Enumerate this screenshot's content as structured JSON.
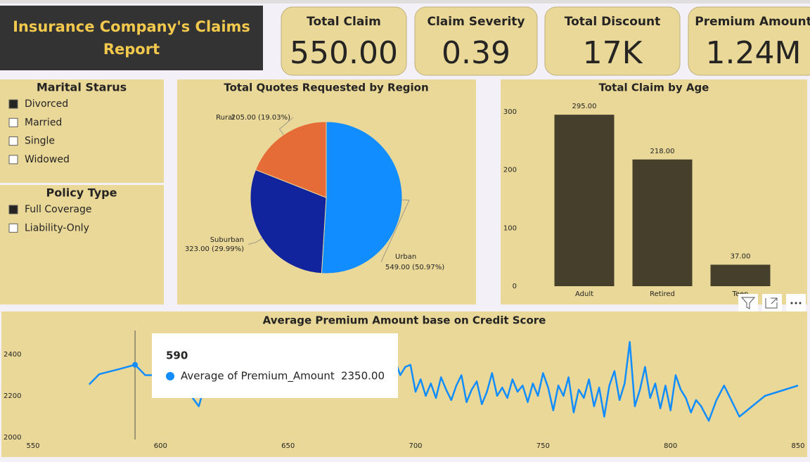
{
  "report_title": "Insurance Company's Claims Report",
  "cards": [
    {
      "label": "Total Claim",
      "value": "550.00"
    },
    {
      "label": "Claim Severity",
      "value": "0.39"
    },
    {
      "label": "Total Discount",
      "value": "17K"
    },
    {
      "label": "Premium Amount",
      "value": "1.24M"
    }
  ],
  "slicers": [
    {
      "title": "Marital Starus",
      "items": [
        {
          "label": "Divorced",
          "checked": true
        },
        {
          "label": "Married",
          "checked": false
        },
        {
          "label": "Single",
          "checked": false
        },
        {
          "label": "Widowed",
          "checked": false
        }
      ]
    },
    {
      "title": "Policy Type",
      "items": [
        {
          "label": "Full Coverage",
          "checked": true
        },
        {
          "label": "Liability-Only",
          "checked": false
        }
      ]
    }
  ],
  "chart_data": [
    {
      "type": "pie",
      "title": "Total Quotes Requested by Region",
      "categories": [
        "Urban",
        "Suburban",
        "Rural"
      ],
      "values": [
        549,
        323,
        205
      ],
      "value_labels": [
        "549.00 (50.97%)",
        "323.00 (29.99%)",
        "205.00 (19.03%)"
      ],
      "colors": [
        "#118dff",
        "#12239e",
        "#e66c37"
      ]
    },
    {
      "type": "bar",
      "title": "Total Claim by Age",
      "categories": [
        "Adult",
        "Retired",
        "Teen"
      ],
      "values": [
        295,
        218,
        37
      ],
      "value_labels": [
        "295.00",
        "218.00",
        "37.00"
      ],
      "color": "#463f2c",
      "ylim": [
        0,
        300
      ],
      "yticks": [
        0,
        100,
        200,
        300
      ]
    },
    {
      "type": "line",
      "title": "Average Premium Amount base on Credit Score",
      "x": [
        572,
        576,
        584,
        590,
        594,
        600,
        604,
        608,
        612,
        615,
        618,
        622,
        626,
        630,
        634,
        638,
        642,
        646,
        650,
        654,
        658,
        662,
        666,
        670,
        674,
        678,
        682,
        686,
        690,
        692,
        694,
        696,
        698,
        700,
        702,
        704,
        706,
        708,
        710,
        712,
        714,
        716,
        718,
        720,
        722,
        724,
        726,
        728,
        730,
        732,
        734,
        736,
        738,
        740,
        742,
        744,
        746,
        748,
        750,
        752,
        754,
        756,
        758,
        760,
        762,
        764,
        766,
        768,
        770,
        772,
        774,
        776,
        778,
        780,
        782,
        784,
        786,
        788,
        790,
        792,
        794,
        796,
        798,
        800,
        802,
        804,
        806,
        808,
        810,
        812,
        815,
        818,
        821,
        827,
        837,
        850
      ],
      "series": [
        {
          "name": "Average of Premium_Amount",
          "color": "#118dff",
          "values": [
            2255,
            2305,
            2330,
            2350,
            2300,
            2300,
            2260,
            2240,
            2200,
            2150,
            2280,
            2310,
            2240,
            2290,
            2330,
            2260,
            2310,
            2280,
            2340,
            2270,
            2300,
            2250,
            2320,
            2290,
            2330,
            2260,
            2300,
            2340,
            2310,
            2370,
            2300,
            2340,
            2350,
            2220,
            2280,
            2200,
            2260,
            2190,
            2290,
            2230,
            2180,
            2250,
            2300,
            2170,
            2230,
            2270,
            2160,
            2220,
            2310,
            2200,
            2240,
            2190,
            2280,
            2220,
            2250,
            2170,
            2260,
            2200,
            2310,
            2240,
            2130,
            2250,
            2200,
            2290,
            2120,
            2230,
            2190,
            2280,
            2150,
            2240,
            2100,
            2250,
            2320,
            2180,
            2260,
            2460,
            2150,
            2230,
            2340,
            2190,
            2260,
            2140,
            2250,
            2130,
            2300,
            2230,
            2190,
            2120,
            2180,
            2150,
            2080,
            2180,
            2250,
            2100,
            2200,
            2250
          ]
        }
      ],
      "xlim": [
        550,
        850
      ],
      "xticks": [
        550,
        600,
        650,
        700,
        750,
        800,
        850
      ],
      "ylim": [
        2000,
        2500
      ],
      "yticks": [
        2000,
        2200,
        2400
      ],
      "tooltip": {
        "x": 590,
        "value_label": "2350.00"
      }
    }
  ]
}
